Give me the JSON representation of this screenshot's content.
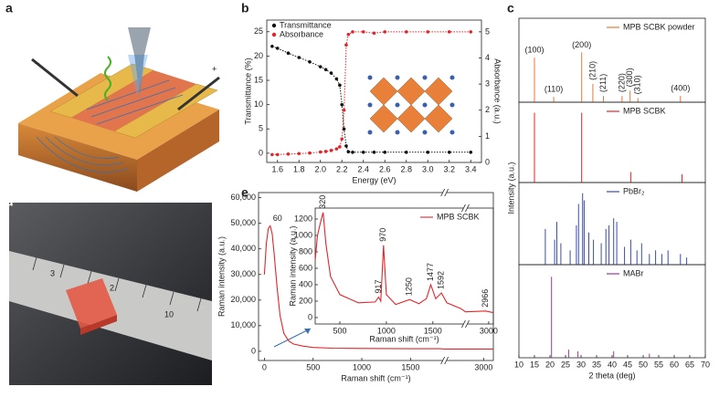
{
  "panel_labels": [
    "a",
    "b",
    "c",
    "d",
    "e"
  ],
  "illustration_text": [
    "−",
    "+"
  ],
  "photo_text": [
    "3",
    "2",
    "10"
  ],
  "chart_data": [
    {
      "type": "line",
      "xlabel": "Energy (eV)",
      "ylabel": "Transmittance (%)",
      "y2label": "Absorbance (a.u.)",
      "xlim": [
        1.5,
        3.5
      ],
      "xticks": [
        1.6,
        1.8,
        {
          "value": 2,
          "label": "2.0"
        },
        2.2,
        2.4,
        2.6,
        2.8,
        {
          "value": 3,
          "label": "3.0"
        },
        3.2,
        3.4
      ],
      "ylim": [
        -1.9,
        27.4
      ],
      "yticks": [
        0,
        5,
        10,
        15,
        20,
        25
      ],
      "y2lim": [
        0,
        5.45
      ],
      "y2ticks": [
        0,
        1,
        2,
        3,
        4,
        5
      ],
      "legend": "upper left",
      "x": [
        1.55,
        1.6,
        1.7,
        1.8,
        1.9,
        2.0,
        2.05,
        2.1,
        2.15,
        2.18,
        2.2,
        2.22,
        2.24,
        2.26,
        2.3,
        2.4,
        2.5,
        2.6,
        2.8,
        3.0,
        3.2,
        3.4
      ],
      "series": [
        {
          "name": "Transmittance",
          "color": "#111111",
          "values": [
            22,
            21.6,
            20.6,
            19.7,
            18.8,
            17.8,
            17.2,
            16.5,
            15.3,
            14,
            10,
            5,
            1.5,
            0.3,
            0.2,
            0.2,
            0.2,
            0.2,
            0.2,
            0.2,
            0.2,
            0.2
          ]
        },
        {
          "name": "Absorbance",
          "color": "#e0262a",
          "axis": "y2",
          "values": [
            0.3,
            0.3,
            0.32,
            0.34,
            0.36,
            0.4,
            0.42,
            0.46,
            0.52,
            0.6,
            0.9,
            2,
            4.5,
            4.9,
            5,
            5,
            4.95,
            5,
            5,
            5,
            5,
            5
          ]
        }
      ]
    },
    {
      "type": "bar",
      "xlabel": "2 theta (deg)",
      "ylabel": "Intensity (a.u.)",
      "xlim": [
        10,
        70
      ],
      "xticks": [
        10,
        15,
        20,
        25,
        30,
        35,
        40,
        45,
        50,
        55,
        60,
        65,
        70
      ],
      "series": [
        {
          "name": "MPB SCBK powder",
          "color": "#e8783a",
          "ylim": [
            0,
            1.6
          ],
          "x": [
            15,
            21.2,
            30.2,
            33.8,
            37.2,
            43.2,
            45.8,
            48.3,
            62
          ],
          "values": [
            0.85,
            0.1,
            0.95,
            0.35,
            0.12,
            0.12,
            0.22,
            0.08,
            0.12
          ],
          "peak_labels": [
            "(100)",
            "(110)",
            "(200)",
            "(210)",
            "(211)",
            "(220)",
            "(300)",
            "(310)",
            "(400)"
          ]
        },
        {
          "name": "MPB SCBK",
          "color": "#e0262a",
          "ylim": [
            0,
            1.15
          ],
          "x": [
            15,
            30.2,
            46,
            62.5
          ],
          "values": [
            1,
            1,
            0.15,
            0.12
          ]
        },
        {
          "name": "PbBr₂",
          "color": "#3b4fa0",
          "ylim": [
            0,
            1.15
          ],
          "x": [
            18.5,
            21.5,
            22.2,
            23.5,
            26.5,
            28.5,
            29.2,
            30.5,
            31,
            32.5,
            34,
            36.5,
            38,
            39,
            40.5,
            41.5,
            44,
            46,
            48,
            49.5,
            52,
            54,
            56,
            58,
            62,
            64
          ],
          "values": [
            0.5,
            0.35,
            0.6,
            0.3,
            0.2,
            0.55,
            0.85,
            1.0,
            0.9,
            0.45,
            0.35,
            0.3,
            0.5,
            0.55,
            0.65,
            0.6,
            0.25,
            0.35,
            0.2,
            0.3,
            0.15,
            0.2,
            0.15,
            0.2,
            0.15,
            0.1
          ]
        },
        {
          "name": "MABr",
          "color": "#9a3a9a",
          "ylim": [
            0,
            1.15
          ],
          "x": [
            20.5,
            26,
            29,
            40.5,
            52
          ],
          "values": [
            1,
            0.1,
            0.08,
            0.08,
            0.05
          ]
        }
      ]
    },
    {
      "type": "line",
      "xlabel": "Raman shift (cm⁻¹)",
      "ylabel": "Raman intensity (a.u.)",
      "xlim": [
        -60,
        3100
      ],
      "xbreak": [
        1850,
        2600
      ],
      "xticks": [
        0,
        500,
        1000,
        1500,
        3000
      ],
      "ylim": [
        -3600,
        62000
      ],
      "yticks": [
        0,
        {
          "value": 10000,
          "label": "10,000"
        },
        {
          "value": 20000,
          "label": "20,000"
        },
        {
          "value": 30000,
          "label": "30,000"
        },
        {
          "value": 40000,
          "label": "40,000"
        },
        {
          "value": 50000,
          "label": "50,000"
        },
        {
          "value": 60000,
          "label": "60,000"
        }
      ],
      "color": "#e0262a",
      "x": [
        0,
        20,
        40,
        60,
        80,
        100,
        130,
        160,
        200,
        250,
        300,
        400,
        500,
        700,
        1000,
        1500,
        1800,
        2600,
        3000,
        3100
      ],
      "values": [
        30000,
        42000,
        48000,
        49000,
        46000,
        38000,
        25000,
        14000,
        7000,
        4000,
        2800,
        2000,
        1500,
        1200,
        1100,
        1000,
        1000,
        900,
        900,
        900
      ],
      "annotations": [
        {
          "x": 60,
          "y": 49000,
          "text": "60"
        }
      ],
      "inset": {
        "type": "line",
        "xlabel": "Raman shift (cm⁻¹)",
        "ylabel": "Raman intensity (a.u.)",
        "xlim": [
          235,
          3050
        ],
        "xbreak": [
          1850,
          2750
        ],
        "xticks": [
          500,
          1000,
          1500,
          3000
        ],
        "ylim": [
          -78,
          1333
        ],
        "yticks": [
          0,
          200,
          400,
          600,
          800,
          1000,
          1200
        ],
        "legend": "upper right",
        "series": [
          {
            "name": "MPB SCBK",
            "color": "#e0262a",
            "x": [
              235,
              260,
              290,
              320,
              350,
              400,
              500,
              700,
              880,
              917,
              940,
              970,
              1000,
              1100,
              1250,
              1350,
              1430,
              1477,
              1530,
              1592,
              1650,
              1800,
              2750,
              2966,
              3050
            ],
            "values": [
              700,
              1000,
              1150,
              1280,
              900,
              500,
              280,
              180,
              190,
              250,
              200,
              880,
              280,
              160,
              220,
              170,
              230,
              400,
              230,
              300,
              180,
              110,
              70,
              80,
              60
            ]
          }
        ],
        "annotations": [
          {
            "x": 320,
            "y": 1280,
            "text": "320"
          },
          {
            "x": 917,
            "y": 250,
            "text": "917"
          },
          {
            "x": 970,
            "y": 880,
            "text": "970"
          },
          {
            "x": 1250,
            "y": 220,
            "text": "1250"
          },
          {
            "x": 1477,
            "y": 400,
            "text": "1477"
          },
          {
            "x": 1592,
            "y": 300,
            "text": "1592"
          },
          {
            "x": 2966,
            "y": 80,
            "text": "2966"
          }
        ]
      }
    }
  ]
}
